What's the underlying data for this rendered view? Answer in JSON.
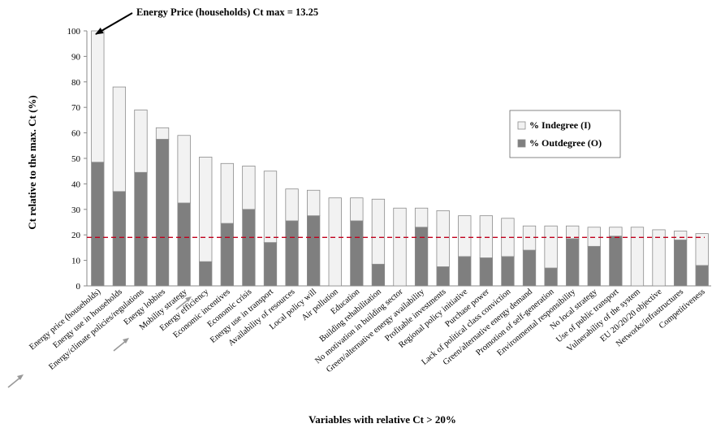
{
  "chart_data": {
    "type": "bar",
    "stacked": true,
    "title": "",
    "annotation": "Energy Price (households) Ct max = 13.25",
    "xlabel": "Variables with relative Ct > 20%",
    "ylabel": "Ct relative to the max. Ct (%)",
    "ylim": [
      0,
      100
    ],
    "yticks": [
      0,
      10,
      20,
      30,
      40,
      50,
      60,
      70,
      80,
      90,
      100
    ],
    "grid": false,
    "threshold": 19,
    "legend_position": "right",
    "colors": {
      "indegree": "#f2f2f2",
      "outdegree": "#7f7f7f",
      "bar_outline": "#8c8c8c",
      "threshold_line": "#c0001c",
      "arrow": "#999999"
    },
    "categories": [
      "Energy price (households)",
      "Energy use in households",
      "Energy/climate policies/regulations",
      "Energy lobbies",
      "Mobility strategy",
      "Energy efficiency",
      "Economic incentives",
      "Economic crisis",
      "Energy use in transport",
      "Availability of resources",
      "Local policy will",
      "Air pollution",
      "Education",
      "Building rehabilitation",
      "No motivation in building sector",
      "Green/alternative energy availability",
      "Profitable investments",
      "Regional policy initiative",
      "Purchase power",
      "Lack of political class conviction",
      "Green/alternative energy demand",
      "Promotion of self-generation",
      "Environmental responsibility",
      "No local strategy",
      "Use of public transport",
      "Vulnerability of the system",
      "EU 20/20/20 objective",
      "Networks/infrastructures",
      "Competitiveness"
    ],
    "arrow_marked_categories": [
      "Energy price (households)",
      "Energy/climate policies/regulations",
      "Mobility strategy"
    ],
    "series": [
      {
        "name": "% Outdegree (O)",
        "values": [
          48.5,
          37,
          44.5,
          57.5,
          32.5,
          9.5,
          24.5,
          30,
          17,
          25.5,
          27.5,
          0,
          25.5,
          8.5,
          0,
          23,
          7.5,
          11.5,
          11,
          11.5,
          14,
          7,
          18.5,
          15.5,
          19.5,
          0,
          0,
          18,
          8
        ]
      },
      {
        "name": "% Indegree (I)",
        "values": [
          51.5,
          41,
          24.5,
          4.5,
          26.5,
          41,
          23.5,
          17,
          28,
          12.5,
          10,
          34.5,
          9,
          25.5,
          30.5,
          7.5,
          22,
          16,
          16.5,
          15,
          9.5,
          16.5,
          5,
          7.5,
          3.5,
          23,
          22,
          3.5,
          12.5
        ]
      }
    ]
  }
}
